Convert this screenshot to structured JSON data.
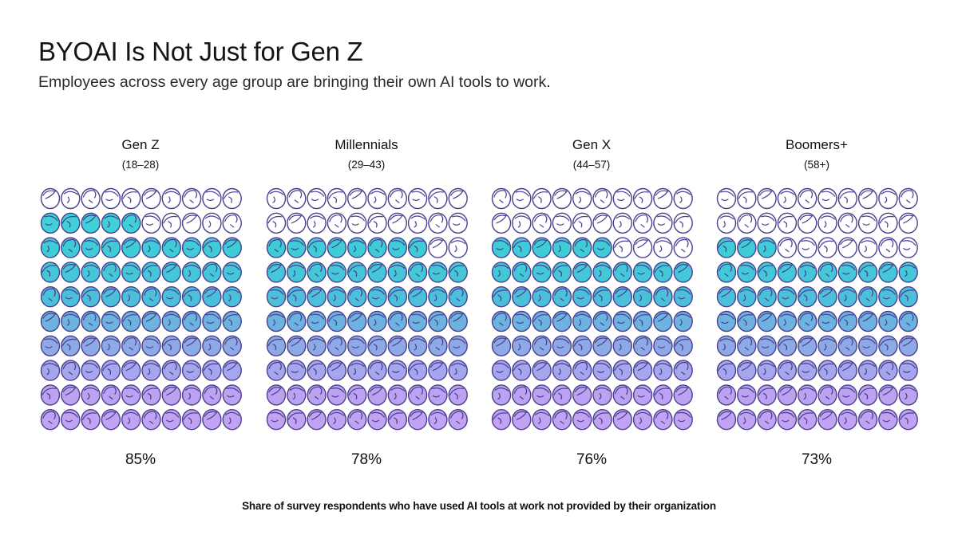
{
  "header": {
    "title": "BYOAI Is Not Just for Gen Z",
    "subtitle": "Employees across every age group are bringing their own AI tools to work."
  },
  "chart_data": {
    "type": "pictogram",
    "title": "BYOAI Is Not Just for Gen Z",
    "subtitle": "Employees across every age group are bringing their own AI tools to work.",
    "units_per_group": 100,
    "grid": {
      "rows": 10,
      "cols": 10
    },
    "categories": [
      "Gen Z",
      "Millennials",
      "Gen X",
      "Boomers+"
    ],
    "ranges": [
      "(18–28)",
      "(29–43)",
      "(44–57)",
      "(58+)"
    ],
    "values": [
      85,
      78,
      76,
      73
    ],
    "value_labels": [
      "85%",
      "78%",
      "76%",
      "73%"
    ],
    "note": "Share of survey respondents who have used AI tools at work not provided by their organization"
  },
  "colors": {
    "outline": "#4a3f8f",
    "row_fills": [
      "#3fd0d8",
      "#3fd0d8",
      "#3ecdd6",
      "#44c8d8",
      "#4cc0da",
      "#6cb3e0",
      "#8eaae6",
      "#a6a6ee",
      "#bba3f2",
      "#c1a2f3"
    ]
  }
}
